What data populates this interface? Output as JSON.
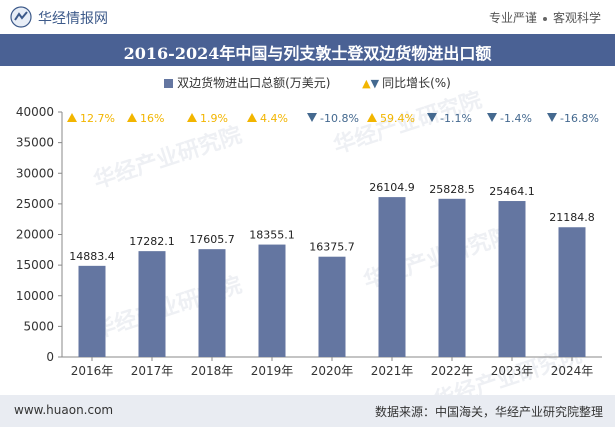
{
  "header": {
    "brand": "华经情报网",
    "tags": [
      "专业严谨",
      "客观科学"
    ]
  },
  "title": "2016-2024年中国与列支敦士登双边货物进出口额",
  "legend": {
    "bar_label": "双边货物进出口总额(万美元)",
    "growth_label": "同比增长(%)"
  },
  "footer": {
    "website": "www.huaon.com",
    "source": "数据来源：中国海关，华经产业研究院整理"
  },
  "watermark": "华经产业研究院",
  "colors": {
    "bar": "#6476a1",
    "up": "#f2b500",
    "down": "#44698f",
    "title_bg": "#4a6194"
  },
  "chart_data": {
    "type": "bar",
    "categories": [
      "2016年",
      "2017年",
      "2018年",
      "2019年",
      "2020年",
      "2021年",
      "2022年",
      "2023年",
      "2024年"
    ],
    "series": [
      {
        "name": "双边货物进出口总额(万美元)",
        "values": [
          14883.4,
          17282.1,
          17605.7,
          18355.1,
          16375.7,
          26104.9,
          25828.5,
          25464.1,
          21184.8
        ]
      }
    ],
    "value_labels": [
      "14883.4",
      "17282.1",
      "17605.7",
      "18355.1",
      "16375.7",
      "26104.9",
      "25828.5",
      "25464.1",
      "21184.8"
    ],
    "growth": [
      12.7,
      16,
      1.9,
      4.4,
      -10.8,
      59.4,
      -1.1,
      -1.4,
      -16.8
    ],
    "growth_labels": [
      "12.7%",
      "16%",
      "1.9%",
      "4.4%",
      "-10.8%",
      "59.4%",
      "-1.1%",
      "-1.4%",
      "-16.8%"
    ],
    "y_ticks": [
      "0",
      "5000",
      "10000",
      "15000",
      "20000",
      "25000",
      "30000",
      "35000",
      "40000"
    ],
    "ylim": [
      0,
      40000
    ]
  }
}
